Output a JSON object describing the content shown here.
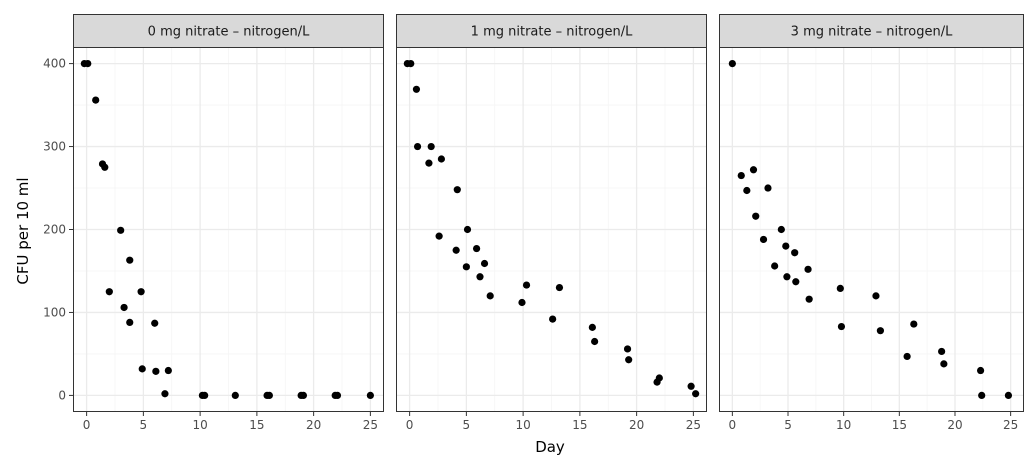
{
  "chart_data": {
    "type": "scatter",
    "xlabel": "Day",
    "ylabel": "CFU per 10 ml",
    "xlim": [
      -1.2,
      26.2
    ],
    "ylim": [
      -20,
      420
    ],
    "x_ticks": [
      0,
      5,
      10,
      15,
      20,
      25
    ],
    "y_ticks": [
      0,
      100,
      200,
      300,
      400
    ],
    "grid": true,
    "legend": "none",
    "colors": {
      "point": "#000000",
      "strip_fill": "#d9d9d9",
      "grid_major": "#ebebeb",
      "grid_minor": "#f5f5f5",
      "border": "#333333"
    },
    "panels": [
      {
        "title": "0 mg nitrate – nitrogen/L",
        "points": [
          [
            -0.2,
            400
          ],
          [
            0.1,
            400
          ],
          [
            0.8,
            356
          ],
          [
            1.4,
            279
          ],
          [
            1.6,
            275
          ],
          [
            2.0,
            125
          ],
          [
            3.0,
            199
          ],
          [
            3.3,
            106
          ],
          [
            3.8,
            163
          ],
          [
            3.8,
            88
          ],
          [
            4.8,
            125
          ],
          [
            4.9,
            32
          ],
          [
            6.0,
            87
          ],
          [
            6.1,
            29
          ],
          [
            6.9,
            2
          ],
          [
            7.2,
            30
          ],
          [
            10.2,
            0
          ],
          [
            10.4,
            0
          ],
          [
            13.1,
            0
          ],
          [
            15.9,
            0
          ],
          [
            16.1,
            0
          ],
          [
            18.9,
            0
          ],
          [
            19.1,
            0
          ],
          [
            21.9,
            0
          ],
          [
            22.1,
            0
          ],
          [
            25.0,
            0
          ]
        ]
      },
      {
        "title": "1 mg nitrate – nitrogen/L",
        "points": [
          [
            -0.2,
            400
          ],
          [
            0.1,
            400
          ],
          [
            0.6,
            369
          ],
          [
            0.7,
            300
          ],
          [
            1.7,
            280
          ],
          [
            1.9,
            300
          ],
          [
            2.6,
            192
          ],
          [
            2.8,
            285
          ],
          [
            4.1,
            175
          ],
          [
            4.2,
            248
          ],
          [
            5.0,
            155
          ],
          [
            5.1,
            200
          ],
          [
            5.9,
            177
          ],
          [
            6.2,
            143
          ],
          [
            6.6,
            159
          ],
          [
            7.1,
            120
          ],
          [
            9.9,
            112
          ],
          [
            10.3,
            133
          ],
          [
            12.6,
            92
          ],
          [
            13.2,
            130
          ],
          [
            16.1,
            82
          ],
          [
            16.3,
            65
          ],
          [
            19.2,
            56
          ],
          [
            19.3,
            43
          ],
          [
            21.8,
            16
          ],
          [
            22.0,
            21
          ],
          [
            24.8,
            11
          ],
          [
            25.2,
            2
          ]
        ]
      },
      {
        "title": "3 mg nitrate – nitrogen/L",
        "points": [
          [
            0.0,
            400
          ],
          [
            0.8,
            265
          ],
          [
            1.3,
            247
          ],
          [
            1.9,
            272
          ],
          [
            2.1,
            216
          ],
          [
            2.8,
            188
          ],
          [
            3.2,
            250
          ],
          [
            3.8,
            156
          ],
          [
            4.4,
            200
          ],
          [
            4.8,
            180
          ],
          [
            4.9,
            143
          ],
          [
            5.6,
            172
          ],
          [
            5.7,
            137
          ],
          [
            6.8,
            152
          ],
          [
            6.9,
            116
          ],
          [
            9.7,
            129
          ],
          [
            9.8,
            83
          ],
          [
            12.9,
            120
          ],
          [
            13.3,
            78
          ],
          [
            15.7,
            47
          ],
          [
            16.3,
            86
          ],
          [
            18.8,
            53
          ],
          [
            19.0,
            38
          ],
          [
            22.3,
            30
          ],
          [
            22.4,
            0
          ],
          [
            24.8,
            0
          ]
        ]
      }
    ]
  }
}
